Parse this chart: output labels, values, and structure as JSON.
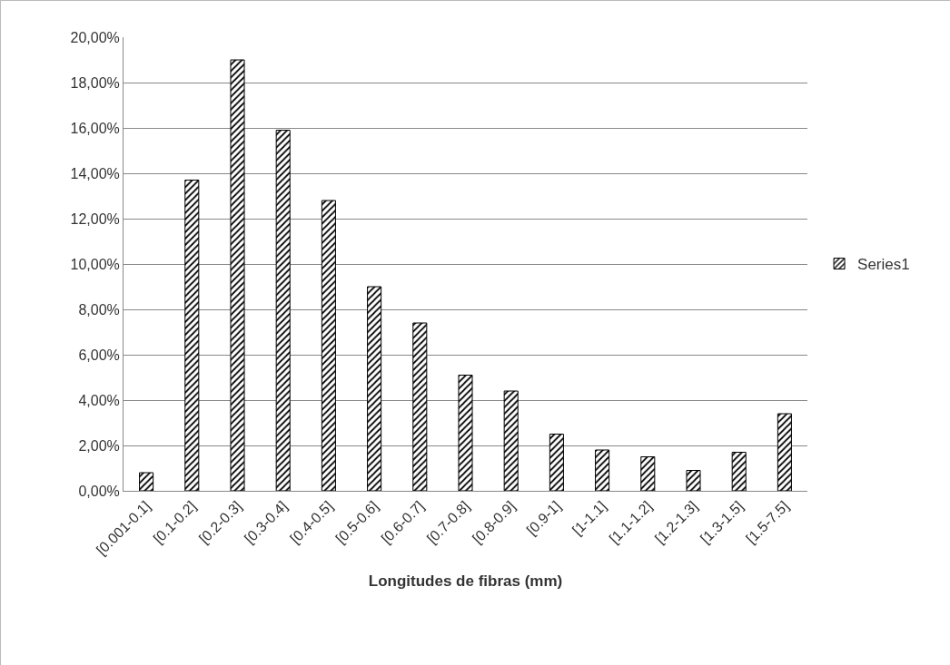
{
  "chart_data": {
    "type": "bar",
    "xlabel": "Longitudes de fibras (mm)",
    "categories": [
      "[0.001-0.1]",
      "[0.1-0.2]",
      "[0.2-0.3]",
      "[0.3-0.4]",
      "[0.4-0.5]",
      "[0.5-0.6]",
      "[0.6-0.7]",
      "[0.7-0.8]",
      "[0.8-0.9]",
      "[0.9-1]",
      "[1-1.1]",
      "[1.1-1.2]",
      "[1.2-1.3]",
      "[1.3-1.5]",
      "[1.5-7.5]"
    ],
    "series": [
      {
        "name": "Series1",
        "color": "#000000",
        "values": [
          0.8,
          13.7,
          19.0,
          15.9,
          12.8,
          9.0,
          7.4,
          5.1,
          4.4,
          2.5,
          1.8,
          1.5,
          0.9,
          1.7,
          3.4
        ]
      }
    ],
    "ylim": [
      0,
      20
    ],
    "yticks": [
      {
        "value": 0,
        "label": "0,00%"
      },
      {
        "value": 2,
        "label": "2,00%"
      },
      {
        "value": 4,
        "label": "4,00%"
      },
      {
        "value": 6,
        "label": "6,00%"
      },
      {
        "value": 8,
        "label": "8,00%"
      },
      {
        "value": 10,
        "label": "10,00%"
      },
      {
        "value": 12,
        "label": "12,00%"
      },
      {
        "value": 14,
        "label": "14,00%"
      },
      {
        "value": 16,
        "label": "16,00%"
      },
      {
        "value": 18,
        "label": "18,00%"
      },
      {
        "value": 20,
        "label": "20,00%"
      }
    ],
    "grid": "y",
    "legend": "right"
  }
}
